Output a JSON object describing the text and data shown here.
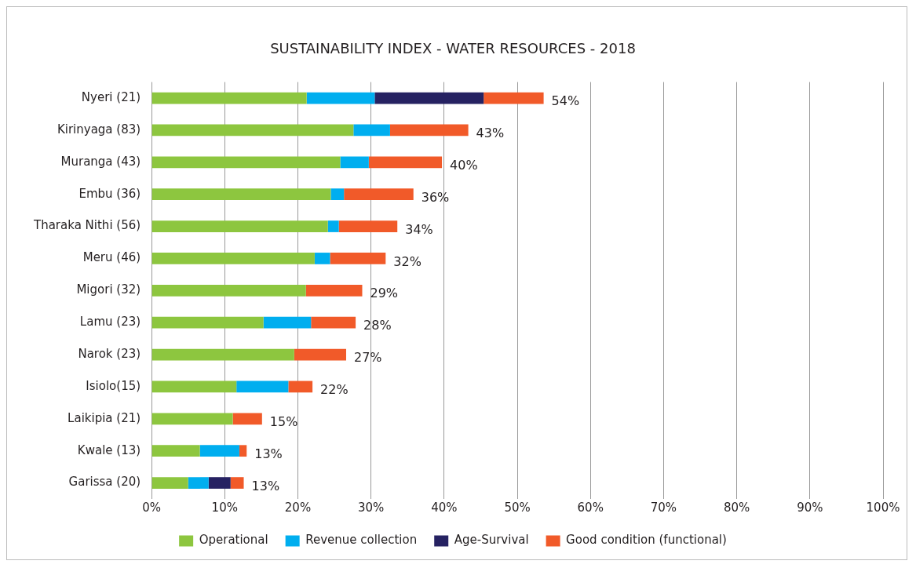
{
  "chart_data": {
    "type": "bar",
    "title": "SUSTAINABILITY INDEX - WATER RESOURCES - 2018",
    "orientation": "horizontal",
    "stacked": true,
    "categories": [
      "Nyeri (21)",
      "Kirinyaga (83)",
      "Muranga (43)",
      "Embu (36)",
      "Tharaka Nithi (56)",
      "Meru (46)",
      "Migori (32)",
      "Lamu (23)",
      "Narok (23)",
      "Isiolo(15)",
      "Laikipia (21)",
      "Kwale (13)",
      "Garissa (20)"
    ],
    "series": [
      {
        "name": "Operational",
        "color": "#8dc63f",
        "values": [
          21.2,
          27.6,
          25.8,
          24.5,
          24.1,
          22.3,
          21.1,
          15.3,
          19.5,
          11.6,
          11.1,
          6.6,
          5.0
        ]
      },
      {
        "name": "Revenue collection",
        "color": "#00aeef",
        "values": [
          9.3,
          5.0,
          3.9,
          1.8,
          1.5,
          2.1,
          0,
          6.5,
          0,
          7.1,
          0,
          5.4,
          2.8
        ]
      },
      {
        "name": "Age-Survival",
        "color": "#262262",
        "values": [
          14.9,
          0,
          0,
          0,
          0,
          0,
          0,
          0,
          0,
          0,
          0,
          0,
          3.0
        ]
      },
      {
        "name": "Good condition (functional)",
        "color": "#f15a29",
        "values": [
          8.2,
          10.7,
          10.0,
          9.5,
          8.0,
          7.6,
          7.7,
          6.1,
          7.1,
          3.3,
          4.0,
          1.0,
          1.8
        ]
      }
    ],
    "totals": [
      "54%",
      "43%",
      "40%",
      "36%",
      "34%",
      "32%",
      "29%",
      "28%",
      "27%",
      "22%",
      "15%",
      "13%",
      "13%"
    ],
    "xlim": [
      0,
      100
    ],
    "xticks": [
      {
        "value": 0,
        "label": "0%"
      },
      {
        "value": 10,
        "label": "10%"
      },
      {
        "value": 20,
        "label": "20%"
      },
      {
        "value": 30,
        "label": "30%"
      },
      {
        "value": 40,
        "label": "40%"
      },
      {
        "value": 50,
        "label": "50%"
      },
      {
        "value": 60,
        "label": "60%"
      },
      {
        "value": 70,
        "label": "70%"
      },
      {
        "value": 80,
        "label": "80%"
      },
      {
        "value": 90,
        "label": "90%"
      },
      {
        "value": 100,
        "label": "100%"
      }
    ],
    "grid": "x",
    "legend": "bottom"
  }
}
